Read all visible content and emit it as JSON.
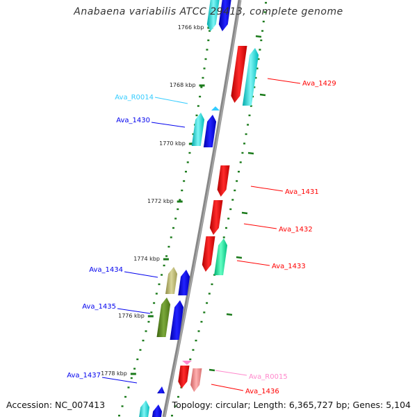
{
  "title": "Anabaena variabilis ATCC 29413, complete genome",
  "footer": {
    "accession": "Accession: NC_007413",
    "summary": "Topology: circular; Length: 6,365,727 bp; Genes: 5,104"
  },
  "colors": {
    "backbone": "#888888",
    "tick": "#1a7a1a",
    "red": "#ff0000",
    "cyan": "#00e5e5",
    "blue": "#0000ee",
    "khaki": "#b8b46a",
    "olive": "#5f8a1a",
    "green": "#00e09a",
    "pink": "#f08a8a",
    "rna_cyan": "#33ccff",
    "rna_pink": "#ff88cc"
  },
  "ticks": [
    "1766 kbp",
    "1768 kbp",
    "1770 kbp",
    "1772 kbp",
    "1774 kbp",
    "1776 kbp",
    "1778 kbp"
  ],
  "genes": [
    {
      "name": "Ava_1429",
      "strand": "minus",
      "color": "red"
    },
    {
      "name": "Ava_1430",
      "strand": "plus",
      "color": "blue"
    },
    {
      "name": "Ava_R0014",
      "strand": "plus",
      "color": "rna_cyan"
    },
    {
      "name": "Ava_1431",
      "strand": "minus",
      "color": "red"
    },
    {
      "name": "Ava_1432",
      "strand": "minus",
      "color": "red"
    },
    {
      "name": "Ava_1433",
      "strand": "minus",
      "color": "red"
    },
    {
      "name": "Ava_1434",
      "strand": "plus",
      "color": "blue"
    },
    {
      "name": "Ava_1435",
      "strand": "plus",
      "color": "blue"
    },
    {
      "name": "Ava_R0015",
      "strand": "minus",
      "color": "rna_pink"
    },
    {
      "name": "Ava_1436",
      "strand": "minus",
      "color": "red"
    },
    {
      "name": "Ava_1437",
      "strand": "plus",
      "color": "blue"
    }
  ]
}
